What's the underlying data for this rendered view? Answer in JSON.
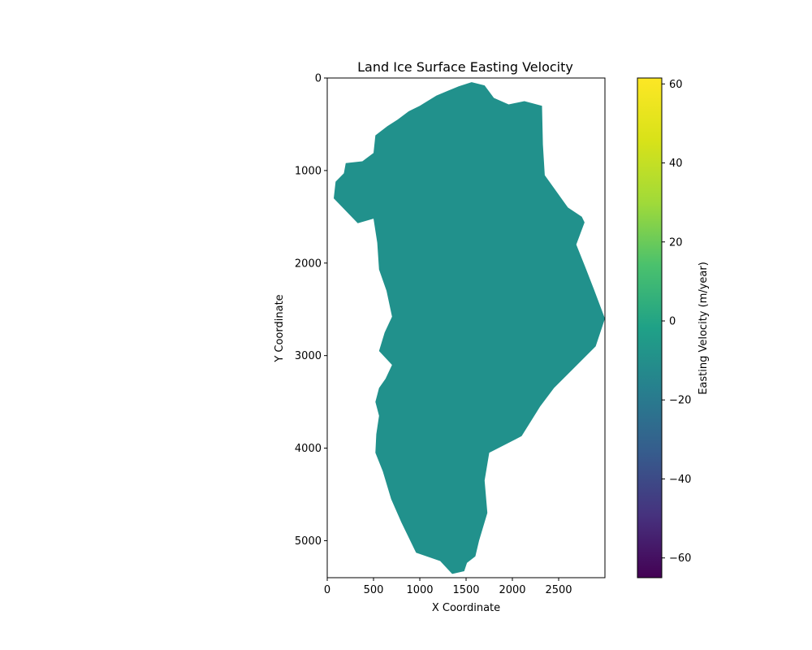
{
  "chart_data": {
    "type": "heatmap",
    "title": "Land Ice Surface Easting Velocity",
    "xlabel": "X Coordinate",
    "ylabel": "Y Coordinate",
    "xlim": [
      0,
      3000
    ],
    "ylim": [
      5400,
      0
    ],
    "x_ticks": [
      0,
      500,
      1000,
      1500,
      2000,
      2500
    ],
    "y_ticks": [
      0,
      1000,
      2000,
      3000,
      4000,
      5000
    ],
    "colorbar": {
      "label": "Easting Velocity (m/year)",
      "colormap": "viridis",
      "range": [
        -65,
        61.5
      ],
      "ticks": [
        -60,
        -40,
        -20,
        0,
        20,
        40,
        60
      ]
    },
    "field": {
      "region": "Greenland ice sheet",
      "dominant_value": 0,
      "color": "#21918c"
    },
    "grid": false
  }
}
